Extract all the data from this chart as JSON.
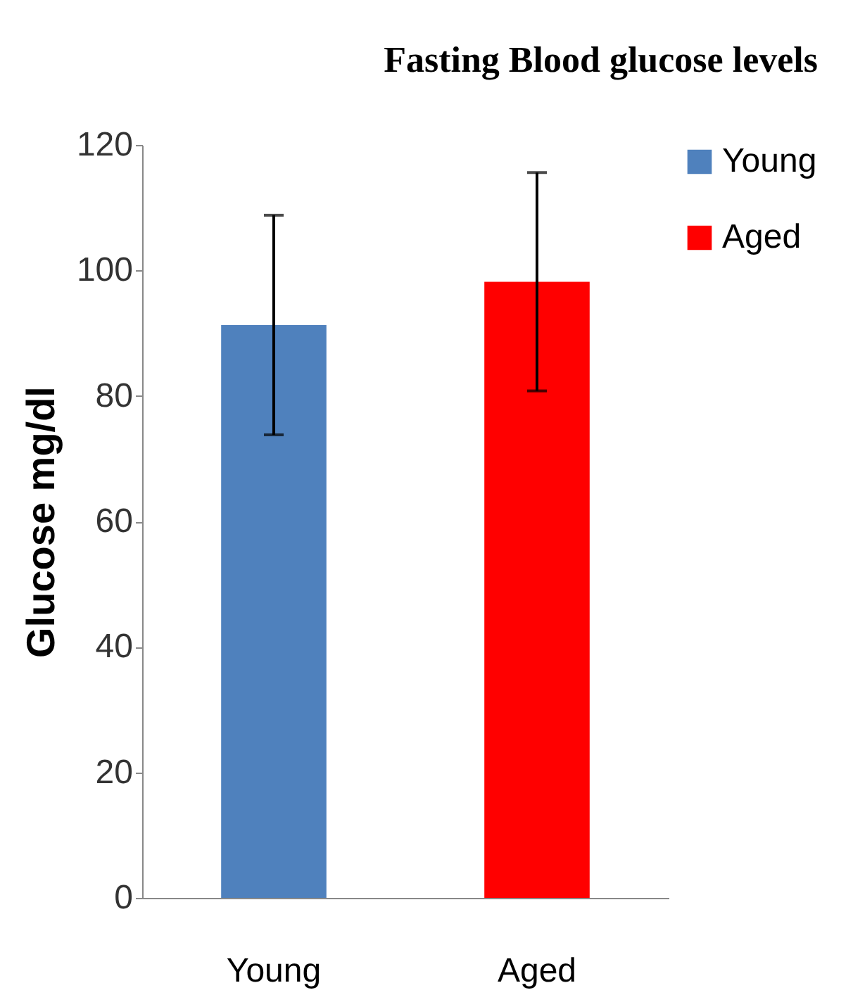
{
  "chart_data": {
    "type": "bar",
    "title": "Fasting Blood glucose levels",
    "ylabel": "Glucose mg/dl",
    "categories": [
      "Young",
      "Aged"
    ],
    "series": [
      {
        "name": "Young",
        "color": "#4f81bd",
        "values": [
          91.3,
          null
        ],
        "errors": [
          17.5,
          null
        ]
      },
      {
        "name": "Aged",
        "color": "#ff0000",
        "values": [
          null,
          98.2
        ],
        "errors": [
          null,
          17.4
        ]
      }
    ],
    "ylim": [
      0,
      120
    ],
    "yticks": [
      0,
      20,
      40,
      60,
      80,
      100,
      120
    ],
    "grid": false,
    "legend": "right"
  }
}
